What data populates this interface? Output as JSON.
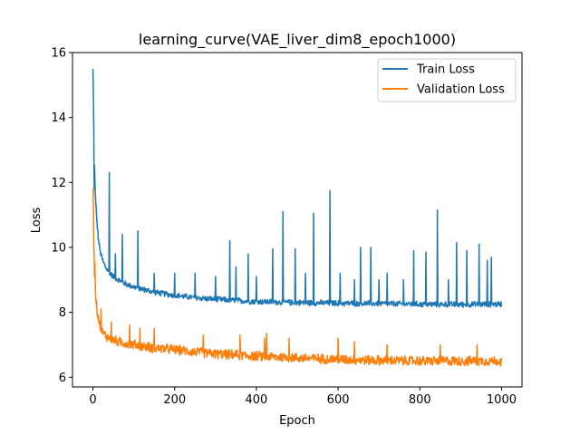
{
  "chart_data": {
    "type": "line",
    "title": "learning_curve(VAE_liver_dim8_epoch1000)",
    "xlabel": "Epoch",
    "ylabel": "Loss",
    "xlim": [
      -50,
      1050
    ],
    "ylim": [
      5.7,
      16
    ],
    "xticks": [
      0,
      200,
      400,
      600,
      800,
      1000
    ],
    "yticks": [
      6,
      8,
      10,
      12,
      14,
      16
    ],
    "grid": false,
    "legend_position": "top-right",
    "series": [
      {
        "name": "Train Loss",
        "color": "#1f77b4",
        "base": [
          [
            0,
            15.5
          ],
          [
            2,
            13.8
          ],
          [
            4,
            12.5
          ],
          [
            6,
            11.6
          ],
          [
            9,
            10.9
          ],
          [
            13,
            10.3
          ],
          [
            18,
            9.85
          ],
          [
            25,
            9.55
          ],
          [
            35,
            9.3
          ],
          [
            50,
            9.1
          ],
          [
            75,
            8.9
          ],
          [
            100,
            8.78
          ],
          [
            150,
            8.62
          ],
          [
            200,
            8.52
          ],
          [
            250,
            8.45
          ],
          [
            300,
            8.4
          ],
          [
            400,
            8.33
          ],
          [
            500,
            8.3
          ],
          [
            600,
            8.28
          ],
          [
            700,
            8.27
          ],
          [
            800,
            8.25
          ],
          [
            900,
            8.24
          ],
          [
            1000,
            8.25
          ]
        ],
        "noise": 0.1,
        "spikes": [
          [
            3,
            11.8
          ],
          [
            8,
            11.2
          ],
          [
            40,
            12.3
          ],
          [
            55,
            9.8
          ],
          [
            72,
            10.4
          ],
          [
            110,
            10.5
          ],
          [
            150,
            9.2
          ],
          [
            200,
            9.2
          ],
          [
            250,
            9.2
          ],
          [
            300,
            9.1
          ],
          [
            335,
            10.2
          ],
          [
            350,
            9.4
          ],
          [
            380,
            9.8
          ],
          [
            400,
            9.1
          ],
          [
            440,
            9.95
          ],
          [
            465,
            11.1
          ],
          [
            495,
            9.95
          ],
          [
            520,
            9.2
          ],
          [
            540,
            11.05
          ],
          [
            580,
            11.75
          ],
          [
            605,
            9.2
          ],
          [
            640,
            9.0
          ],
          [
            655,
            10.0
          ],
          [
            680,
            10.0
          ],
          [
            700,
            9.0
          ],
          [
            720,
            9.2
          ],
          [
            760,
            9.0
          ],
          [
            785,
            9.9
          ],
          [
            815,
            9.85
          ],
          [
            843,
            11.15
          ],
          [
            870,
            9.0
          ],
          [
            890,
            10.15
          ],
          [
            915,
            9.9
          ],
          [
            945,
            10.1
          ],
          [
            965,
            9.6
          ],
          [
            975,
            9.7
          ]
        ]
      },
      {
        "name": "Validation Loss",
        "color": "#ff7f0e",
        "base": [
          [
            0,
            11.7
          ],
          [
            2,
            10.2
          ],
          [
            4,
            9.2
          ],
          [
            7,
            8.5
          ],
          [
            11,
            8.0
          ],
          [
            17,
            7.6
          ],
          [
            25,
            7.35
          ],
          [
            40,
            7.2
          ],
          [
            60,
            7.1
          ],
          [
            100,
            7.0
          ],
          [
            150,
            6.9
          ],
          [
            200,
            6.85
          ],
          [
            250,
            6.78
          ],
          [
            300,
            6.72
          ],
          [
            400,
            6.65
          ],
          [
            500,
            6.6
          ],
          [
            600,
            6.55
          ],
          [
            700,
            6.52
          ],
          [
            800,
            6.5
          ],
          [
            900,
            6.5
          ],
          [
            1000,
            6.5
          ]
        ],
        "noise": 0.17,
        "spikes": [
          [
            1,
            11.8
          ],
          [
            5,
            9.5
          ],
          [
            20,
            8.1
          ],
          [
            45,
            7.7
          ],
          [
            90,
            7.6
          ],
          [
            115,
            7.5
          ],
          [
            150,
            7.5
          ],
          [
            270,
            7.3
          ],
          [
            360,
            7.3
          ],
          [
            420,
            7.2
          ],
          [
            425,
            7.35
          ],
          [
            480,
            7.2
          ],
          [
            600,
            7.2
          ],
          [
            640,
            7.1
          ],
          [
            720,
            7.0
          ],
          [
            850,
            7.0
          ],
          [
            940,
            7.0
          ]
        ]
      }
    ]
  }
}
